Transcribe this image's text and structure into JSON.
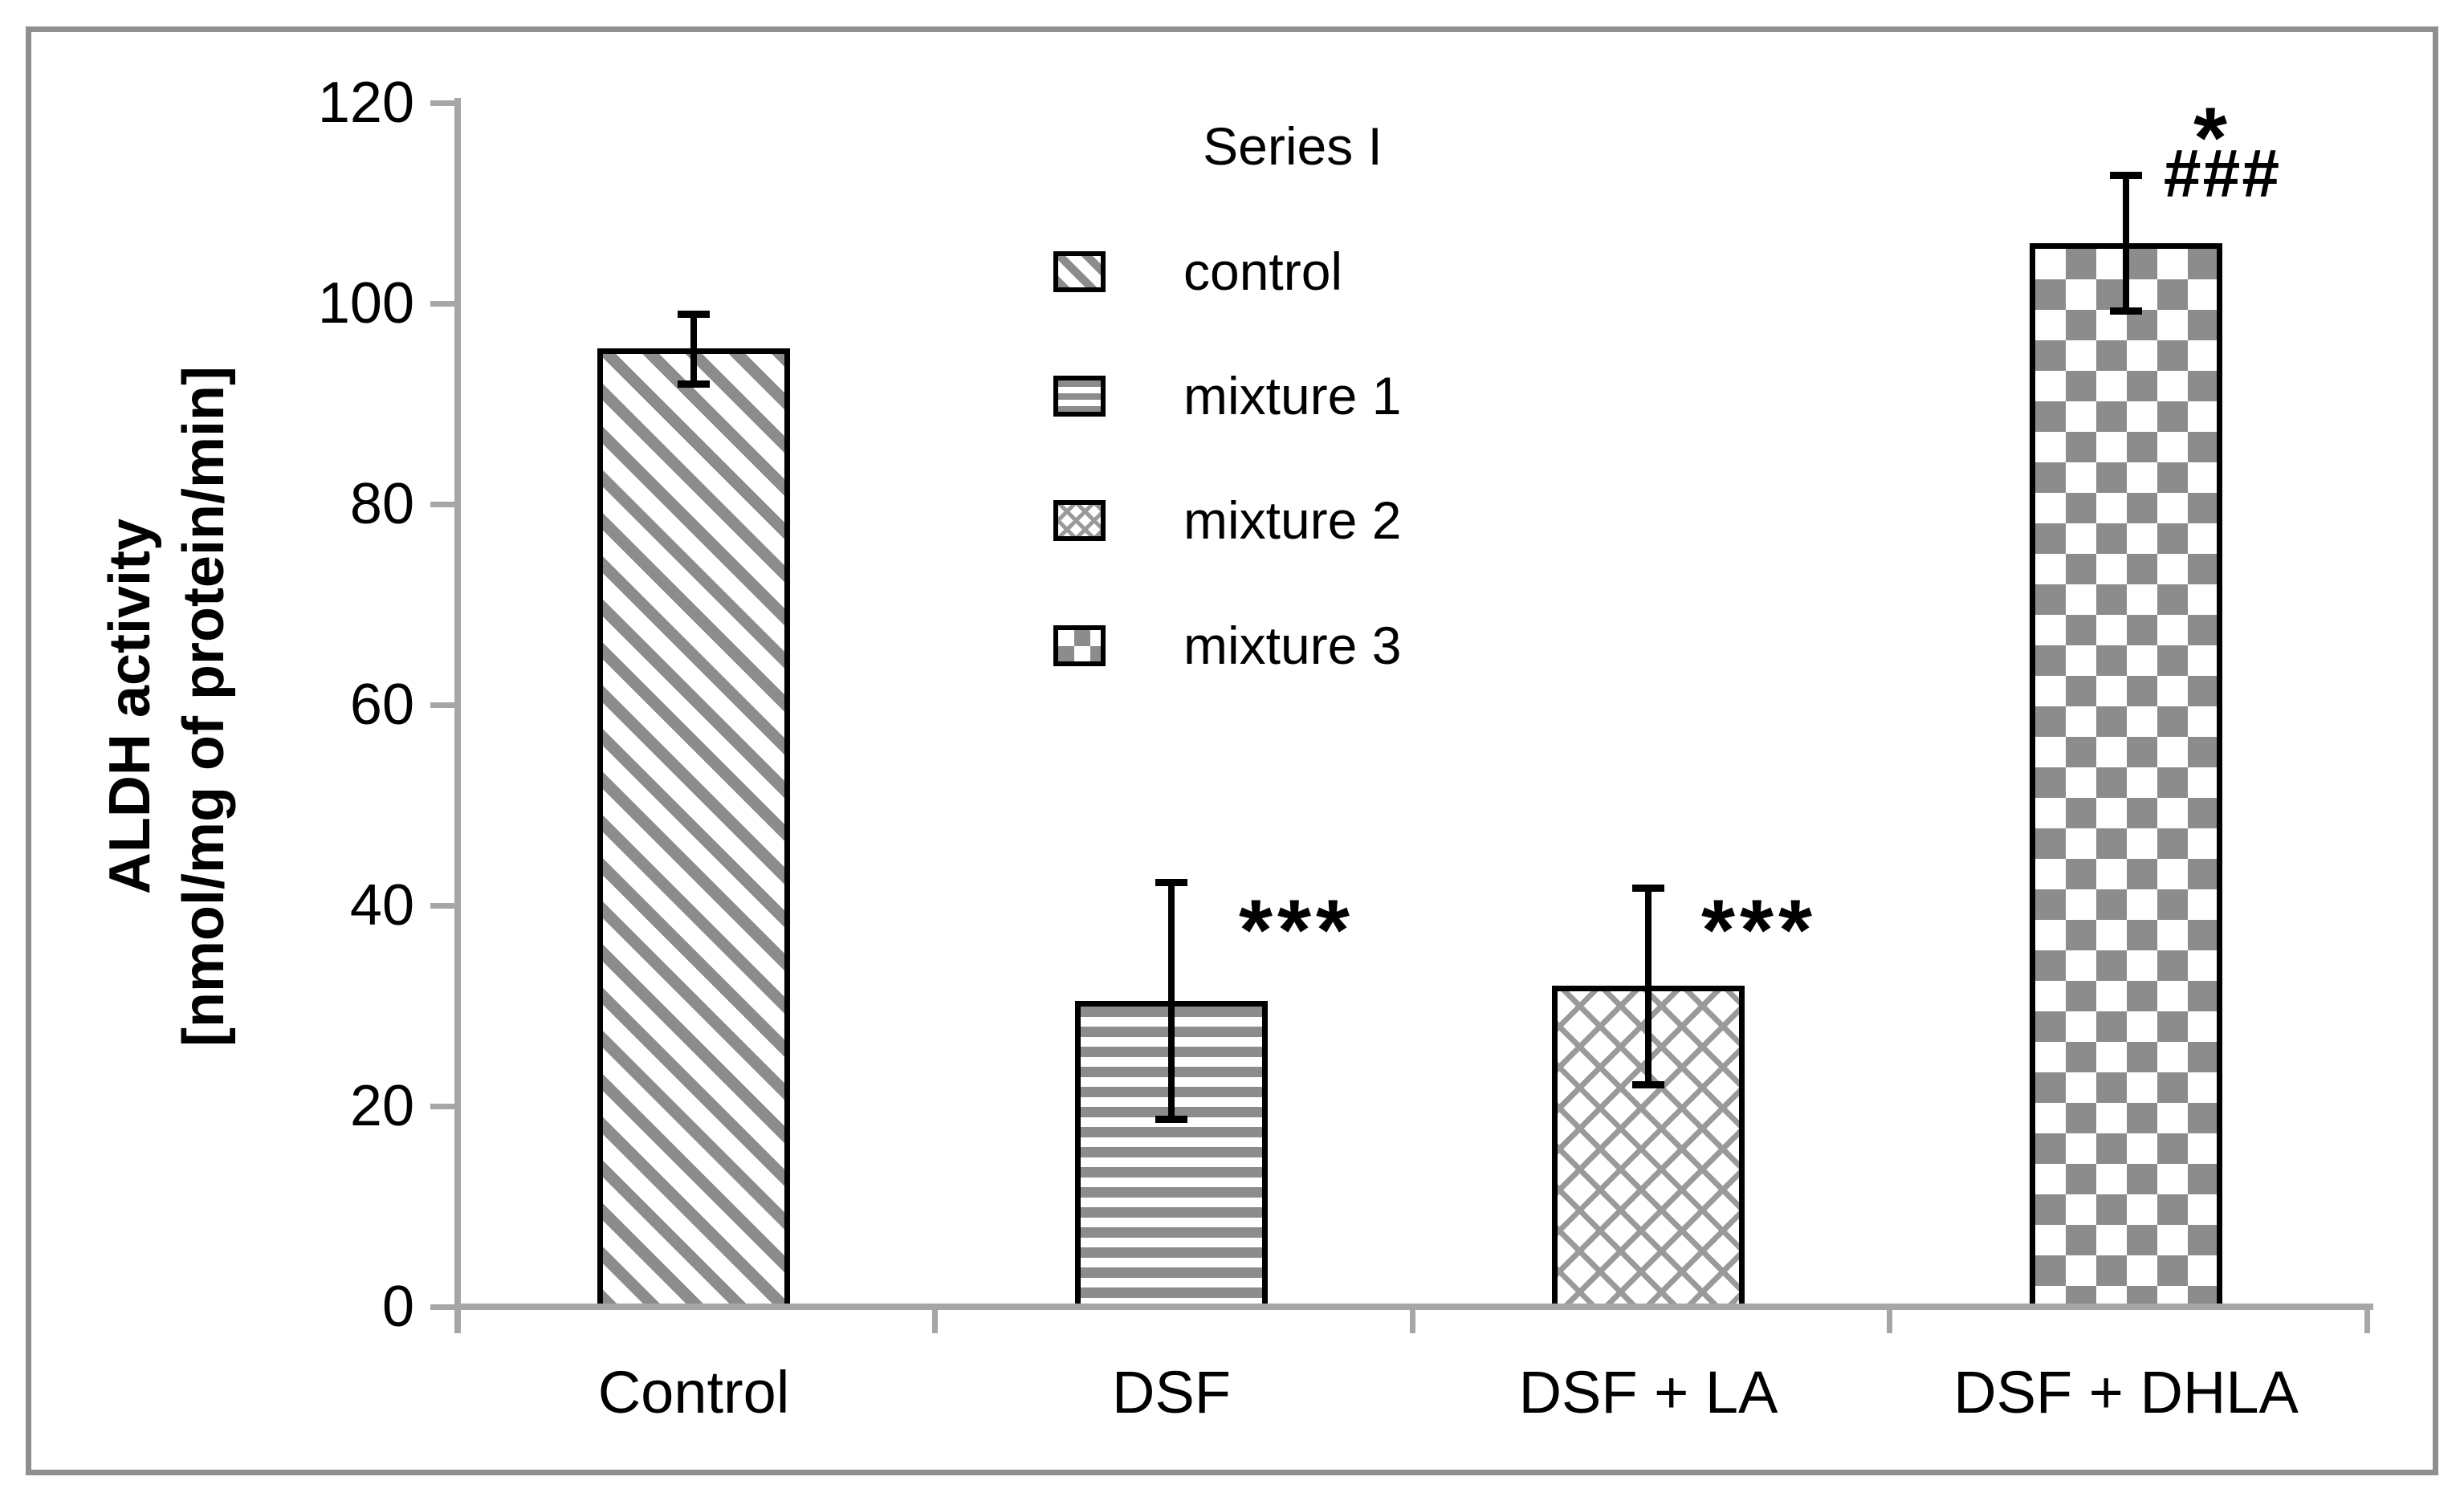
{
  "chart_data": {
    "type": "bar",
    "title": "",
    "categories": [
      "Control",
      "DSF",
      "DSF + LA",
      "DSF + DHLA"
    ],
    "series": [
      {
        "name": "Series I",
        "values": [
          95.5,
          30.5,
          32,
          106
        ],
        "error_upper": [
          99,
          42.3,
          41.8,
          112.8
        ],
        "error_lower": [
          92,
          18.7,
          22.2,
          99.3
        ]
      }
    ],
    "bar_patterns": [
      "diagonal-stripe",
      "horizontal-stripe",
      "diagonal-crosshatch",
      "checkerboard"
    ],
    "ylabel": [
      "ALDH activity",
      "[nmol/mg of protein/min]"
    ],
    "xlabel": "",
    "ylim": [
      0,
      120
    ],
    "yticks": [
      120,
      100,
      80,
      60,
      40,
      20,
      0
    ],
    "grid": false,
    "legend": {
      "position": "upper-left-of-plot",
      "title": "Series I",
      "entries": [
        {
          "label": "control",
          "pattern": "diagonal-stripe"
        },
        {
          "label": "mixture 1",
          "pattern": "horizontal-stripe"
        },
        {
          "label": "mixture 2",
          "pattern": "diagonal-crosshatch"
        },
        {
          "label": "mixture 3",
          "pattern": "checkerboard"
        }
      ]
    },
    "annotations": [
      {
        "text": "***",
        "category": "DSF",
        "value": 40
      },
      {
        "text": "***",
        "category": "DSF + LA",
        "value": 40
      },
      {
        "text": "*",
        "category": "DSF + DHLA",
        "value": 119
      },
      {
        "text": "###",
        "category": "DSF + DHLA",
        "value": 113
      }
    ]
  },
  "colors": {
    "axis": "#A6A6A6",
    "frame": "#8F8F8F",
    "pattern_gray": "#8C8C8C",
    "crosshatch_gray": "#9A9A9A",
    "text": "#000000"
  }
}
